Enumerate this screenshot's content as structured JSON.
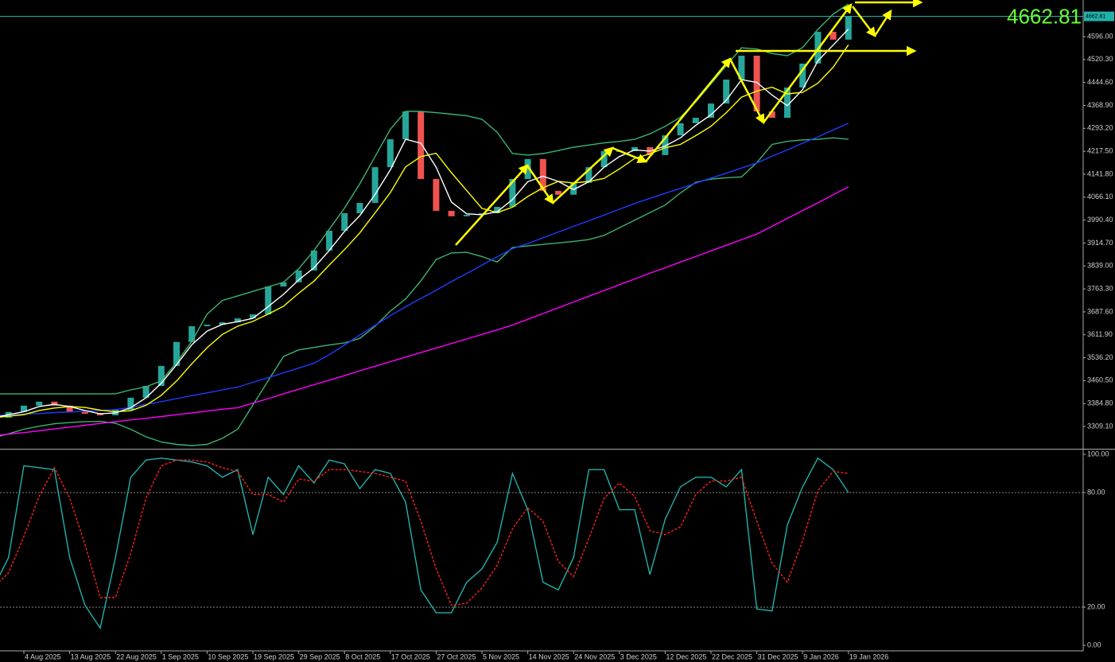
{
  "chart_data": [
    {
      "type": "candlestick",
      "current_price": 4662.81,
      "up_color": "#26a69a",
      "down_color": "#ef5350",
      "categories": [
        null,
        null,
        "4 Aug 2025",
        null,
        null,
        "13 Aug 2025",
        null,
        null,
        "22 Aug 2025",
        null,
        null,
        "1 Sep 2025",
        null,
        null,
        "10 Sep 2025",
        null,
        null,
        "19 Sep 2025",
        null,
        null,
        "29 Sep 2025",
        null,
        null,
        "8 Oct 2025",
        null,
        null,
        "17 Oct 2025",
        null,
        null,
        "27 Oct 2025",
        null,
        null,
        "5 Nov 2025",
        null,
        null,
        "14 Nov 2025",
        null,
        null,
        "24 Nov 2025",
        null,
        null,
        "3 Dec 2025",
        null,
        null,
        "12 Dec 2025",
        null,
        null,
        "22 Dec 2025",
        null,
        null,
        "31 Dec 2025",
        null,
        null,
        "9 Jan 2026",
        null,
        null,
        "19 Jan 2026"
      ],
      "open": [
        3330,
        3338,
        3357,
        3378,
        3391,
        3378,
        3357,
        3351,
        3346,
        3364,
        3404,
        3443,
        3509,
        3588,
        3640,
        3645,
        3653,
        3666,
        3679,
        3771,
        3785,
        3824,
        3890,
        3955,
        4013,
        4047,
        4165,
        4257,
        4349,
        4126,
        4021,
        4003,
        4008,
        4013,
        4034,
        4126,
        4192,
        4087,
        4074,
        4113,
        4165,
        4218,
        4218,
        4231,
        4205,
        4270,
        4310,
        4328,
        4375,
        4454,
        4533,
        4349,
        4328,
        4428,
        4507,
        4612,
        4586
      ],
      "close": [
        3338,
        3357,
        3378,
        3391,
        3378,
        3357,
        3351,
        3346,
        3364,
        3404,
        3443,
        3509,
        3588,
        3640,
        3645,
        3653,
        3666,
        3679,
        3771,
        3785,
        3824,
        3890,
        3955,
        4013,
        4047,
        4165,
        4257,
        4349,
        4126,
        4021,
        4003,
        4008,
        4013,
        4034,
        4126,
        4192,
        4087,
        4074,
        4113,
        4165,
        4218,
        4218,
        4231,
        4205,
        4270,
        4310,
        4328,
        4375,
        4454,
        4533,
        4349,
        4328,
        4428,
        4507,
        4612,
        4586,
        4664
      ],
      "series": [
        {
          "color": "#3cb371",
          "values": [
            3417,
            3417,
            3417,
            3417,
            3417,
            3417,
            3417,
            3417,
            3417,
            3430,
            3440,
            3460,
            3520,
            3590,
            3680,
            3725,
            3740,
            3755,
            3770,
            3785,
            3830,
            3890,
            3960,
            4030,
            4110,
            4200,
            4290,
            4349,
            4349,
            4345,
            4340,
            4335,
            4323,
            4280,
            4210,
            4205,
            4210,
            4220,
            4231,
            4238,
            4245,
            4250,
            4257,
            4275,
            4300,
            4330,
            4380,
            4440,
            4500,
            4559,
            4555,
            4540,
            4533,
            4560,
            4620,
            4670,
            4704
          ]
        },
        {
          "color": "#3cb371",
          "values": [
            3272,
            3285,
            3300,
            3310,
            3318,
            3322,
            3325,
            3326,
            3320,
            3300,
            3275,
            3258,
            3250,
            3246,
            3250,
            3270,
            3300,
            3380,
            3460,
            3540,
            3562,
            3570,
            3578,
            3585,
            3600,
            3640,
            3690,
            3730,
            3790,
            3860,
            3882,
            3884,
            3870,
            3852,
            3900,
            3905,
            3910,
            3915,
            3920,
            3926,
            3940,
            3965,
            3990,
            4015,
            4040,
            4080,
            4115,
            4126,
            4130,
            4133,
            4180,
            4240,
            4250,
            4255,
            4257,
            4262,
            4257
          ]
        },
        {
          "color": "#ff00ff",
          "values": [
            3278,
            3284,
            3289,
            3295,
            3301,
            3307,
            3313,
            3319,
            3325,
            3331,
            3336,
            3342,
            3348,
            3354,
            3360,
            3366,
            3371,
            3386,
            3401,
            3417,
            3432,
            3447,
            3462,
            3477,
            3493,
            3508,
            3523,
            3538,
            3553,
            3568,
            3583,
            3598,
            3613,
            3628,
            3644,
            3663,
            3682,
            3701,
            3720,
            3739,
            3758,
            3777,
            3796,
            3815,
            3833,
            3852,
            3870,
            3889,
            3907,
            3926,
            3944,
            3970,
            3996,
            4022,
            4047,
            4074,
            4100
          ]
        },
        {
          "color": "#1e3cff",
          "values": [
            3345,
            3347,
            3350,
            3352,
            3355,
            3357,
            3360,
            3362,
            3365,
            3372,
            3382,
            3391,
            3401,
            3411,
            3420,
            3430,
            3439,
            3455,
            3470,
            3486,
            3502,
            3518,
            3546,
            3578,
            3611,
            3643,
            3675,
            3704,
            3732,
            3759,
            3787,
            3814,
            3842,
            3869,
            3896,
            3913,
            3932,
            3951,
            3970,
            3988,
            4007,
            4026,
            4045,
            4062,
            4079,
            4095,
            4112,
            4129,
            4145,
            4162,
            4179,
            4201,
            4222,
            4244,
            4265,
            4288,
            4310
          ]
        },
        {
          "color": "#ffff00",
          "values": [
            3338,
            3343,
            3348,
            3362,
            3370,
            3375,
            3372,
            3363,
            3358,
            3361,
            3379,
            3412,
            3459,
            3516,
            3569,
            3613,
            3640,
            3656,
            3680,
            3706,
            3749,
            3789,
            3842,
            3893,
            3948,
            4014,
            4081,
            4166,
            4200,
            4211,
            4147,
            4088,
            4029,
            4015,
            4033,
            4068,
            4097,
            4118,
            4113,
            4118,
            4128,
            4159,
            4194,
            4209,
            4229,
            4240,
            4269,
            4300,
            4345,
            4396,
            4416,
            4429,
            4407,
            4412,
            4442,
            4495,
            4569
          ]
        },
        {
          "color": "#ffffff",
          "values": [
            3338,
            3348,
            3358,
            3375,
            3382,
            3375,
            3362,
            3351,
            3354,
            3371,
            3404,
            3452,
            3513,
            3579,
            3624,
            3646,
            3655,
            3666,
            3705,
            3745,
            3793,
            3833,
            3890,
            3953,
            4005,
            4075,
            4156,
            4257,
            4244,
            4165,
            4050,
            4011,
            4008,
            4018,
            4058,
            4117,
            4135,
            4118,
            4091,
            4117,
            4165,
            4200,
            4222,
            4218,
            4235,
            4262,
            4303,
            4338,
            4386,
            4454,
            4445,
            4403,
            4368,
            4421,
            4516,
            4568,
            4621
          ]
        }
      ],
      "ylim": [
        3238.2,
        4716.8
      ],
      "yticks": [
        {
          "value": 4596.0,
          "label": "4596.00"
        },
        {
          "value": 4520.3,
          "label": "4520.30"
        },
        {
          "value": 4444.6,
          "label": "4444.60"
        },
        {
          "value": 4368.9,
          "label": "4368.90"
        },
        {
          "value": 4293.2,
          "label": "4293.20"
        },
        {
          "value": 4217.5,
          "label": "4217.50"
        },
        {
          "value": 4141.8,
          "label": "4141.80"
        },
        {
          "value": 4066.1,
          "label": "4066.10"
        },
        {
          "value": 3990.4,
          "label": "3990.40"
        },
        {
          "value": 3914.7,
          "label": "3914.70"
        },
        {
          "value": 3839.0,
          "label": "3839.00"
        },
        {
          "value": 3763.3,
          "label": "3763.30"
        },
        {
          "value": 3687.6,
          "label": "3687.60"
        },
        {
          "value": 3611.9,
          "label": "3611.90"
        },
        {
          "value": 3536.2,
          "label": "3536.20"
        },
        {
          "value": 3460.5,
          "label": "3460.50"
        },
        {
          "value": 3384.8,
          "label": "3384.80"
        },
        {
          "value": 3309.1,
          "label": "3309.10"
        }
      ]
    },
    {
      "type": "line",
      "series": [
        {
          "color": "#20b2aa",
          "values": [
            30,
            46,
            94,
            93,
            92,
            46,
            21,
            9,
            46,
            88,
            97,
            98,
            97,
            96,
            94,
            88,
            92,
            58,
            88,
            79,
            94,
            85,
            97,
            95,
            82,
            92,
            90,
            75,
            29,
            17,
            17,
            33,
            40,
            54,
            90,
            71,
            33,
            29,
            46,
            92,
            92,
            71,
            71,
            37,
            66,
            83,
            88,
            88,
            83,
            92,
            19,
            18,
            63,
            83,
            98,
            92,
            80
          ]
        },
        {
          "color": "#ff2020",
          "dashed": true,
          "values": [
            30,
            38,
            57,
            78,
            93,
            77,
            53,
            25,
            25,
            48,
            77,
            94,
            97,
            97,
            96,
            93,
            91,
            79,
            79,
            75,
            87,
            86,
            92,
            92,
            91,
            90,
            88,
            86,
            65,
            40,
            21,
            22,
            30,
            42,
            61,
            72,
            65,
            44,
            36,
            56,
            77,
            85,
            78,
            60,
            58,
            62,
            79,
            86,
            86,
            88,
            65,
            43,
            33,
            55,
            81,
            91,
            90
          ]
        }
      ],
      "levels": [
        80,
        20
      ],
      "ylim": [
        -2.9,
        102.1
      ],
      "yticks": [
        {
          "value": 100,
          "label": "100.00"
        },
        {
          "value": 80,
          "label": "80.00"
        },
        {
          "value": 20,
          "label": "20.00"
        },
        {
          "value": 0,
          "label": "0.00"
        }
      ]
    }
  ]
}
